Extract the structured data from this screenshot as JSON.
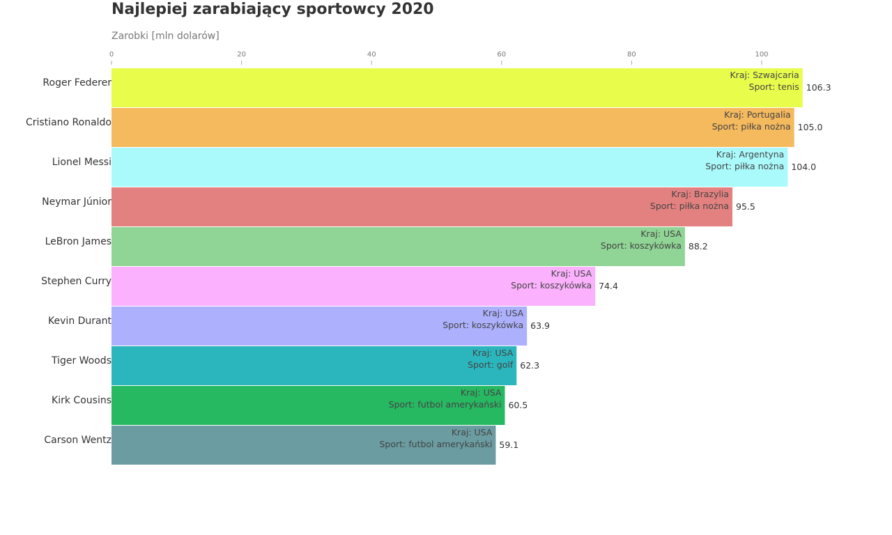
{
  "chart_data": {
    "type": "bar",
    "orientation": "horizontal",
    "title": "Najlepiej zarabiający sportowcy 2020",
    "xlabel": "Zarobki [mln dolarów]",
    "ylabel": "",
    "xlim": [
      0,
      110
    ],
    "x_ticks": [
      0,
      20,
      40,
      60,
      80,
      100
    ],
    "grid": false,
    "legend": "none",
    "country_prefix": "Kraj: ",
    "sport_prefix": "Sport: ",
    "bars": [
      {
        "name": "Roger Federer",
        "value": 106.3,
        "value_label": "106.3",
        "country": "Szwajcaria",
        "sport": "tenis",
        "color": "#e8fc4c"
      },
      {
        "name": "Cristiano Ronaldo",
        "value": 105.0,
        "value_label": "105.0",
        "country": "Portugalia",
        "sport": "piłka nożna",
        "color": "#f5b95e"
      },
      {
        "name": "Lionel Messi",
        "value": 104.0,
        "value_label": "104.0",
        "country": "Argentyna",
        "sport": "piłka nożna",
        "color": "#aafafc"
      },
      {
        "name": "Neymar Júnior",
        "value": 95.5,
        "value_label": "95.5",
        "country": "Brazylia",
        "sport": "piłka nożna",
        "color": "#e38180"
      },
      {
        "name": "LeBron James",
        "value": 88.2,
        "value_label": "88.2",
        "country": "USA",
        "sport": "koszykówka",
        "color": "#90d595"
      },
      {
        "name": "Stephen Curry",
        "value": 74.4,
        "value_label": "74.4",
        "country": "USA",
        "sport": "koszykówka",
        "color": "#fbb1fd"
      },
      {
        "name": "Kevin Durant",
        "value": 63.9,
        "value_label": "63.9",
        "country": "USA",
        "sport": "koszykówka",
        "color": "#adb0fd"
      },
      {
        "name": "Tiger Woods",
        "value": 62.3,
        "value_label": "62.3",
        "country": "USA",
        "sport": "golf",
        "color": "#2bb6be"
      },
      {
        "name": "Kirk Cousins",
        "value": 60.5,
        "value_label": "60.5",
        "country": "USA",
        "sport": "futbol amerykański",
        "color": "#27b862"
      },
      {
        "name": "Carson Wentz",
        "value": 59.1,
        "value_label": "59.1",
        "country": "USA",
        "sport": "futbol amerykański",
        "color": "#6a9ca1"
      }
    ]
  }
}
